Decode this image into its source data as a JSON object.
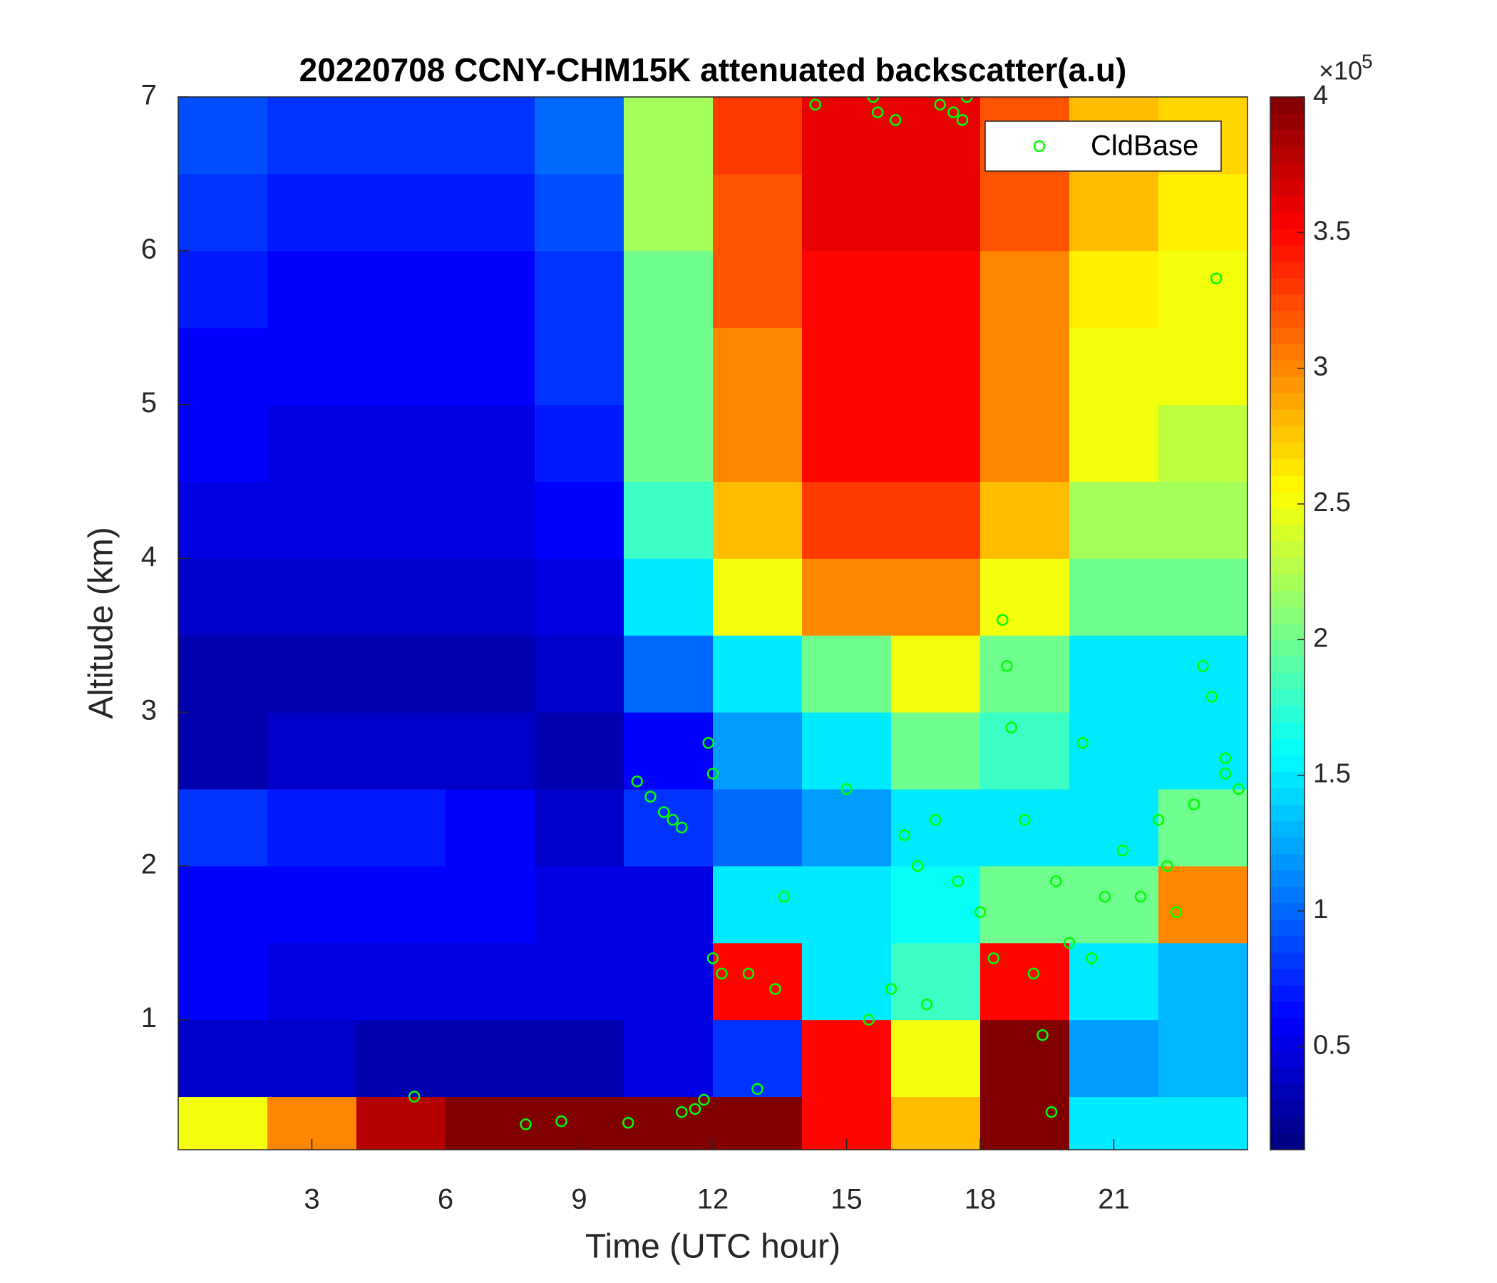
{
  "chart_data": {
    "type": "heatmap",
    "title": "20220708 CCNY-CHM15K attenuated backscatter(a.u)",
    "xlabel": "Time (UTC hour)",
    "ylabel": "Altitude (km)",
    "xlim": [
      0,
      24
    ],
    "ylim": [
      0.155,
      7
    ],
    "xticks": [
      3,
      6,
      9,
      12,
      15,
      18,
      21
    ],
    "yticks": [
      1,
      2,
      3,
      4,
      5,
      6,
      7
    ],
    "x": [
      1,
      3,
      5,
      7,
      9,
      11,
      13,
      15,
      17,
      19,
      21,
      23
    ],
    "y": [
      0.25,
      0.75,
      1.25,
      1.75,
      2.25,
      2.75,
      3.25,
      3.75,
      4.25,
      4.75,
      5.25,
      5.75,
      6.25,
      6.75
    ],
    "z": [
      [
        2.5,
        3,
        3.8,
        4,
        4,
        4,
        4,
        3.5,
        2.8,
        4,
        1.5,
        1.5
      ],
      [
        0.4,
        0.4,
        0.3,
        0.3,
        0.3,
        0.5,
        0.8,
        3.5,
        2.5,
        4,
        1.2,
        1.3
      ],
      [
        0.6,
        0.5,
        0.5,
        0.5,
        0.5,
        0.5,
        3.5,
        1.5,
        1.8,
        3.5,
        1.5,
        1.3
      ],
      [
        0.6,
        0.6,
        0.6,
        0.6,
        0.5,
        0.5,
        1.5,
        1.5,
        1.6,
        2,
        2,
        3
      ],
      [
        0.8,
        0.7,
        0.7,
        0.6,
        0.4,
        0.8,
        1,
        1.2,
        1.5,
        1.5,
        1.5,
        2
      ],
      [
        0.3,
        0.4,
        0.4,
        0.4,
        0.3,
        0.6,
        1.2,
        1.5,
        2,
        1.8,
        1.5,
        1.5
      ],
      [
        0.3,
        0.3,
        0.3,
        0.3,
        0.4,
        1,
        1.5,
        2,
        2.5,
        2,
        1.5,
        1.5
      ],
      [
        0.4,
        0.4,
        0.4,
        0.4,
        0.5,
        1.5,
        2.5,
        3,
        3,
        2.5,
        2,
        2
      ],
      [
        0.5,
        0.5,
        0.5,
        0.5,
        0.6,
        1.8,
        2.8,
        3.3,
        3.3,
        2.8,
        2.2,
        2.2
      ],
      [
        0.6,
        0.5,
        0.5,
        0.5,
        0.7,
        2,
        3,
        3.5,
        3.5,
        3,
        2.5,
        2.3
      ],
      [
        0.6,
        0.6,
        0.6,
        0.6,
        0.8,
        2,
        3,
        3.5,
        3.5,
        3,
        2.5,
        2.5
      ],
      [
        0.7,
        0.6,
        0.6,
        0.6,
        0.8,
        2,
        3.2,
        3.5,
        3.5,
        3,
        2.6,
        2.5
      ],
      [
        0.8,
        0.7,
        0.7,
        0.7,
        0.9,
        2.2,
        3.2,
        3.6,
        3.6,
        3.2,
        2.8,
        2.6
      ],
      [
        0.9,
        0.8,
        0.8,
        0.8,
        1,
        2.2,
        3.3,
        3.6,
        3.6,
        3.2,
        2.8,
        2.7
      ]
    ],
    "clim": [
      0.12,
      4
    ],
    "colorbar_ticks": [
      0.5,
      1,
      1.5,
      2,
      2.5,
      3,
      3.5,
      4
    ],
    "colorbar_multiplier": "×10",
    "colorbar_exponent": "5",
    "legend": "upper right",
    "series": [
      {
        "name": "CldBase",
        "type": "scatter",
        "color": "#00ff00",
        "x": [
          5.3,
          7.8,
          8.6,
          10.1,
          10.3,
          10.6,
          10.9,
          11.1,
          11.3,
          11.3,
          11.6,
          11.8,
          11.9,
          12.0,
          12.0,
          12.2,
          12.8,
          13.0,
          13.4,
          13.6,
          14.3,
          15.0,
          15.5,
          15.6,
          15.7,
          16.0,
          16.1,
          16.3,
          16.6,
          16.8,
          17.0,
          17.1,
          17.4,
          17.6,
          17.7,
          17.5,
          18.0,
          18.3,
          18.5,
          18.7,
          18.6,
          19.0,
          19.2,
          19.4,
          19.6,
          19.7,
          20.0,
          20.3,
          20.5,
          20.8,
          21.2,
          21.6,
          22.0,
          22.2,
          22.4,
          22.8,
          23.0,
          23.2,
          23.5,
          23.8,
          23.3,
          23.5
        ],
        "y": [
          0.5,
          0.32,
          0.34,
          0.33,
          2.55,
          2.45,
          2.35,
          2.3,
          2.25,
          0.4,
          0.42,
          0.48,
          2.8,
          2.6,
          1.4,
          1.3,
          1.3,
          0.55,
          1.2,
          1.8,
          6.95,
          2.5,
          1.0,
          7.0,
          6.9,
          1.2,
          6.85,
          2.2,
          2.0,
          1.1,
          2.3,
          6.95,
          6.9,
          6.85,
          7.0,
          1.9,
          1.7,
          1.4,
          3.6,
          2.9,
          3.3,
          2.3,
          1.3,
          0.9,
          0.4,
          1.9,
          1.5,
          2.8,
          1.4,
          1.8,
          2.1,
          1.8,
          2.3,
          2.0,
          1.7,
          2.4,
          3.3,
          3.1,
          2.6,
          2.5,
          5.82,
          2.7
        ]
      }
    ]
  }
}
